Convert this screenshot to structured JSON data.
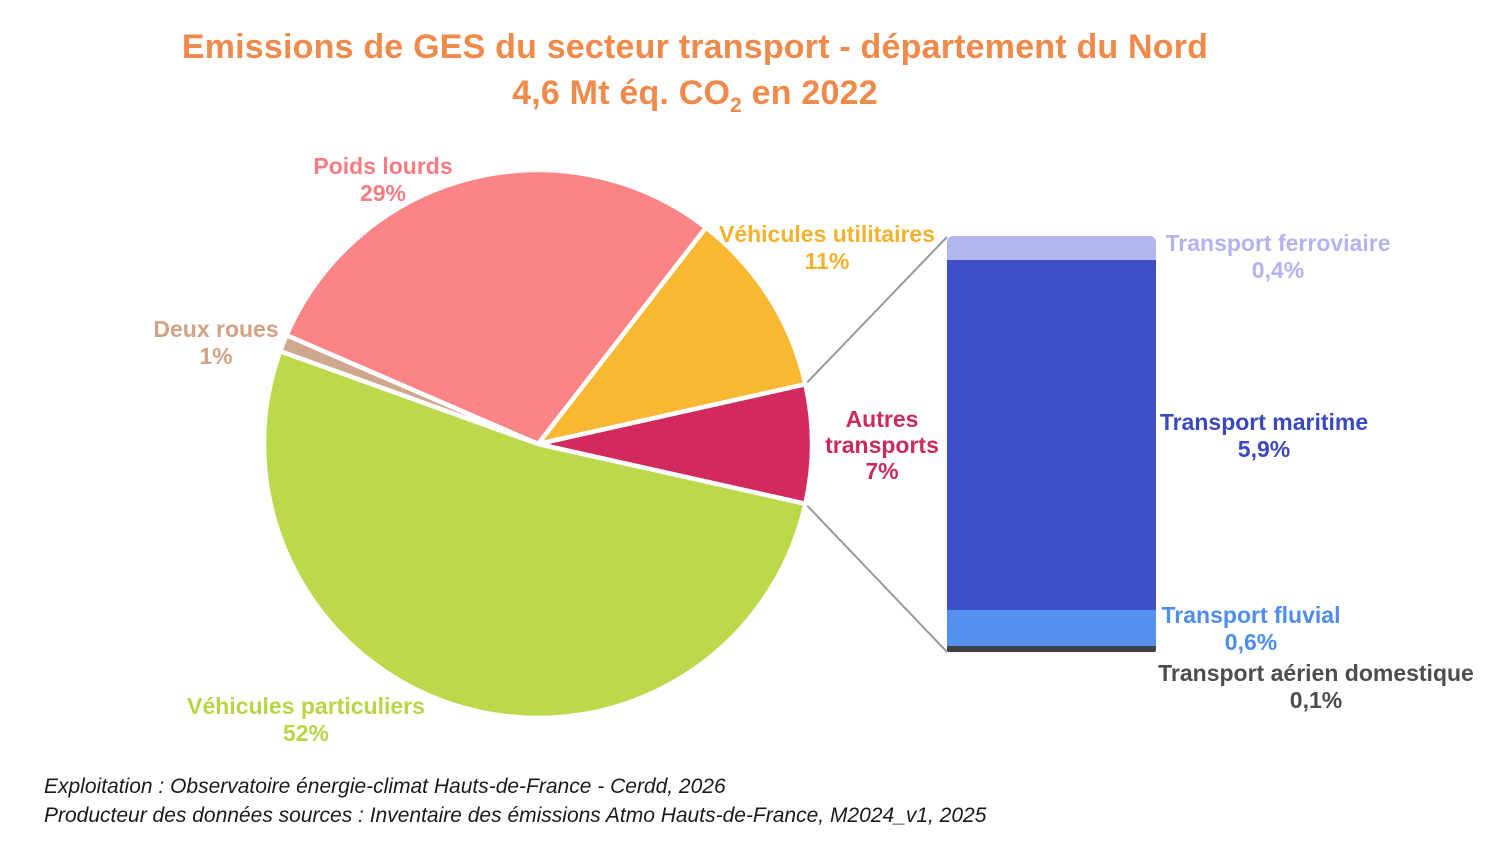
{
  "title": {
    "line1": "Emissions de GES du secteur transport - département du Nord",
    "line2": {
      "pre": "4,6 Mt éq. CO",
      "sub": "2",
      "post": " en 2022"
    },
    "color": "#EF8A4A"
  },
  "chart_data": {
    "type": "pie",
    "title": "Emissions de GES du secteur transport - département du Nord",
    "subtitle": "4,6 Mt éq. CO2 en 2022",
    "unit": "%",
    "total": "4,6 Mt éq. CO2",
    "year": "2022",
    "slices": [
      {
        "label": "Véhicules particuliers",
        "value": 52,
        "display": "52%",
        "color": "#BCD94B",
        "label_color": "#B7D544"
      },
      {
        "label": "Poids lourds",
        "value": 29,
        "display": "29%",
        "color": "#FC8486",
        "label_color": "#F97B82"
      },
      {
        "label": "Véhicules utilitaires",
        "value": 11,
        "display": "11%",
        "color": "#F8B831",
        "label_color": "#F5B02C"
      },
      {
        "label": "Autres transports",
        "value": 7,
        "display": "7%",
        "color": "#D22A5C",
        "label_color": "#CC2A59"
      },
      {
        "label": "Deux roues",
        "value": 1,
        "display": "1%",
        "color": "#CFA78C",
        "label_color": "#D2A285"
      }
    ],
    "breakdown": {
      "of": "Autres transports",
      "type": "stacked-bar",
      "segments": [
        {
          "label": "Transport ferroviaire",
          "value": 0.4,
          "display": "0,4%",
          "color": "#B2B5EE",
          "label_color": "#B3B4EF"
        },
        {
          "label": "Transport maritime",
          "value": 5.9,
          "display": "5,9%",
          "color": "#3D50C8",
          "label_color": "#3A49BF"
        },
        {
          "label": "Transport fluvial",
          "value": 0.6,
          "display": "0,6%",
          "color": "#5590EE",
          "label_color": "#4D8DED"
        },
        {
          "label": "Transport aérien domestique",
          "value": 0.1,
          "display": "0,1%",
          "color": "#3E4246",
          "label_color": "#4D4D4F"
        }
      ]
    },
    "connector_color": "#999999"
  },
  "footer": {
    "line1": "Exploitation : Observatoire énergie-climat Hauts-de-France - Cerdd, 2026",
    "line2": "Producteur des données sources : Inventaire des émissions Atmo Hauts-de-France, M2024_v1, 2025"
  }
}
